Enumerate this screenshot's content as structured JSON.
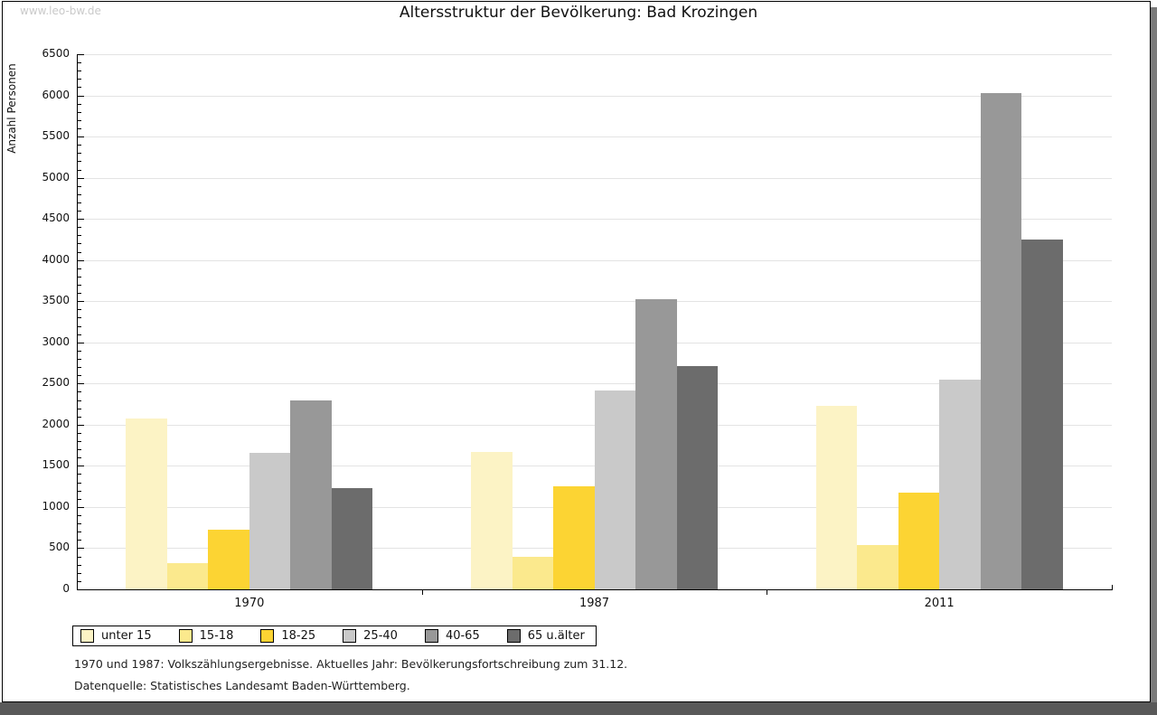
{
  "page": {
    "watermark": "www.leo-bw.de",
    "footnotes": [
      "1970 und 1987: Volkszählungsergebnisse. Aktuelles Jahr: Bevölkerungsfortschreibung zum 31.12.",
      "Datenquelle: Statistisches Landesamt Baden-Württemberg."
    ]
  },
  "chart_data": {
    "type": "bar",
    "title": "Altersstruktur der Bevölkerung: Bad Krozingen",
    "ylabel": "Anzahl Personen",
    "xlabel": "",
    "categories": [
      "1970",
      "1987",
      "2011"
    ],
    "series": [
      {
        "name": "unter 15",
        "color": "#FCF3C5",
        "values": [
          2070,
          1670,
          2230
        ]
      },
      {
        "name": "15-18",
        "color": "#FBE98D",
        "values": [
          320,
          400,
          540
        ]
      },
      {
        "name": "18-25",
        "color": "#FCD433",
        "values": [
          730,
          1250,
          1170
        ]
      },
      {
        "name": "25-40",
        "color": "#C9C9C9",
        "values": [
          1660,
          2420,
          2550
        ]
      },
      {
        "name": "40-65",
        "color": "#989898",
        "values": [
          2300,
          3520,
          6030
        ]
      },
      {
        "name": "65 u.älter",
        "color": "#6C6C6C",
        "values": [
          1230,
          2710,
          4250
        ]
      }
    ],
    "ylim": [
      0,
      6500
    ],
    "ytick_step": 500,
    "y_minor_step": 100,
    "grid": true,
    "legend_position": "bottom-left",
    "gridline_color": "#e3e3e3",
    "axis_color": "#000000"
  }
}
